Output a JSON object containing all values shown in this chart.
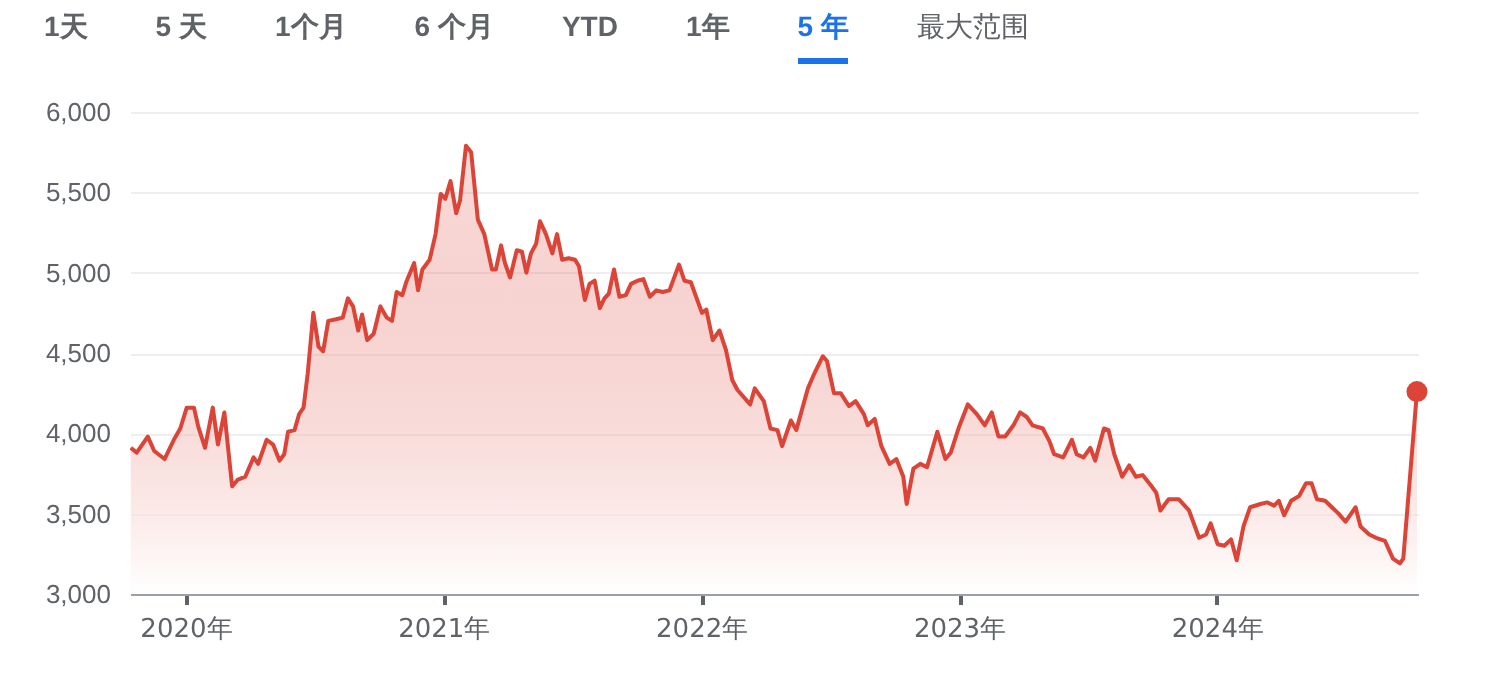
{
  "chart_data": {
    "type": "area",
    "annotations": [
      "1天",
      "5 天",
      "1个月",
      "6 个月",
      "YTD",
      "1年",
      "5 年",
      "最大范围"
    ],
    "xlim": [
      2019.785,
      2024.78
    ],
    "xticks": [
      {
        "value": 2020,
        "label": "2020年"
      },
      {
        "value": 2021,
        "label": "2021年"
      },
      {
        "value": 2022,
        "label": "2022年"
      },
      {
        "value": 2023,
        "label": "2023年"
      },
      {
        "value": 2024,
        "label": "2024年"
      }
    ],
    "ylim": [
      3000,
      6000
    ],
    "yticks": [
      {
        "value": 3000,
        "label": "3,000"
      },
      {
        "value": 3500,
        "label": "3,500"
      },
      {
        "value": 4000,
        "label": "4,000"
      },
      {
        "value": 4500,
        "label": "4,500"
      },
      {
        "value": 5000,
        "label": "5,000"
      },
      {
        "value": 5500,
        "label": "5,500"
      },
      {
        "value": 6000,
        "label": "6,000"
      }
    ],
    "grid": "y",
    "series": [
      {
        "color": "#db4437",
        "x": [
          2019.788,
          2019.811,
          2019.854,
          2019.879,
          2019.919,
          2019.955,
          2019.98,
          2020.005,
          2020.033,
          2020.05,
          2020.076,
          2020.106,
          2020.126,
          2020.151,
          2020.181,
          2020.202,
          2020.232,
          2020.264,
          2020.282,
          2020.315,
          2020.34,
          2020.365,
          2020.383,
          2020.398,
          2020.423,
          2020.441,
          2020.458,
          2020.474,
          2020.496,
          2020.516,
          2020.534,
          2020.554,
          2020.584,
          2020.61,
          2020.63,
          2020.65,
          2020.67,
          2020.685,
          2020.705,
          2020.73,
          2020.756,
          2020.781,
          2020.801,
          2020.819,
          2020.841,
          2020.856,
          2020.887,
          2020.902,
          2020.919,
          2020.947,
          2020.97,
          2020.99,
          2021.008,
          2021.028,
          2021.05,
          2021.065,
          2021.088,
          2021.108,
          2021.134,
          2021.159,
          2021.189,
          2021.204,
          2021.224,
          2021.239,
          2021.259,
          2021.285,
          2021.305,
          2021.322,
          2021.34,
          2021.36,
          2021.375,
          2021.398,
          2021.423,
          2021.441,
          2021.461,
          2021.486,
          2021.511,
          2021.526,
          2021.549,
          2021.567,
          2021.587,
          2021.607,
          2021.625,
          2021.642,
          2021.662,
          2021.683,
          2021.708,
          2021.728,
          2021.753,
          2021.776,
          2021.801,
          2021.826,
          2021.851,
          2021.877,
          2021.914,
          2021.935,
          2021.96,
          2021.985,
          2022.003,
          2022.02,
          2022.045,
          2022.071,
          2022.096,
          2022.121,
          2022.141,
          2022.19,
          2022.208,
          2022.243,
          2022.269,
          2022.296,
          2022.314,
          2022.348,
          2022.369,
          2022.414,
          2022.441,
          2022.472,
          2022.488,
          2022.515,
          2022.541,
          2022.573,
          2022.599,
          2022.631,
          2022.646,
          2022.673,
          2022.699,
          2022.731,
          2022.757,
          2022.784,
          2022.797,
          2022.823,
          2022.85,
          2022.876,
          2022.916,
          2022.947,
          2022.968,
          2023.0,
          2023.034,
          2023.069,
          2023.1,
          2023.127,
          2023.153,
          2023.179,
          2023.211,
          2023.237,
          2023.264,
          2023.285,
          2023.325,
          2023.351,
          2023.369,
          2023.404,
          2023.438,
          2023.456,
          2023.483,
          2023.509,
          2023.528,
          2023.562,
          2023.58,
          2023.602,
          2023.633,
          2023.66,
          2023.686,
          2023.712,
          2023.747,
          2023.765,
          2023.781,
          2023.813,
          2023.852,
          2023.892,
          2023.931,
          2023.958,
          2023.976,
          2024.003,
          2024.029,
          2024.055,
          2024.077,
          2024.103,
          2024.129,
          2024.169,
          2024.195,
          2024.222,
          2024.24,
          2024.261,
          2024.288,
          2024.319,
          2024.346,
          2024.367,
          2024.388,
          2024.42,
          2024.446,
          2024.472,
          2024.499,
          2024.538,
          2024.557,
          2024.591,
          2024.617,
          2024.652,
          2024.683,
          2024.71,
          2024.723,
          2024.776
        ],
        "values": [
          3910,
          3880,
          3980,
          3890,
          3840,
          3960,
          4030,
          4160,
          4160,
          4040,
          3910,
          4160,
          3930,
          4130,
          3670,
          3710,
          3730,
          3850,
          3810,
          3960,
          3930,
          3830,
          3870,
          4010,
          4020,
          4120,
          4160,
          4370,
          4750,
          4540,
          4510,
          4700,
          4710,
          4720,
          4840,
          4790,
          4640,
          4740,
          4580,
          4620,
          4790,
          4720,
          4700,
          4880,
          4860,
          4940,
          5060,
          4890,
          5020,
          5080,
          5240,
          5490,
          5460,
          5570,
          5370,
          5450,
          5790,
          5750,
          5330,
          5240,
          5020,
          5020,
          5170,
          5060,
          4970,
          5140,
          5130,
          5000,
          5120,
          5180,
          5320,
          5240,
          5120,
          5240,
          5080,
          5090,
          5080,
          5040,
          4830,
          4930,
          4950,
          4780,
          4840,
          4870,
          5020,
          4850,
          4860,
          4930,
          4950,
          4960,
          4850,
          4890,
          4880,
          4890,
          5050,
          4950,
          4940,
          4830,
          4750,
          4770,
          4580,
          4640,
          4520,
          4330,
          4270,
          4180,
          4280,
          4200,
          4030,
          4020,
          3920,
          4080,
          4020,
          4280,
          4380,
          4480,
          4450,
          4250,
          4250,
          4170,
          4200,
          4120,
          4050,
          4090,
          3920,
          3810,
          3840,
          3730,
          3560,
          3780,
          3810,
          3790,
          4010,
          3840,
          3880,
          4040,
          4180,
          4120,
          4050,
          4130,
          3980,
          3980,
          4050,
          4130,
          4100,
          4050,
          4030,
          3950,
          3870,
          3850,
          3960,
          3870,
          3850,
          3910,
          3830,
          4030,
          4020,
          3870,
          3730,
          3800,
          3730,
          3740,
          3670,
          3630,
          3520,
          3590,
          3590,
          3520,
          3350,
          3370,
          3440,
          3310,
          3300,
          3340,
          3210,
          3420,
          3540,
          3560,
          3570,
          3550,
          3580,
          3490,
          3580,
          3610,
          3690,
          3690,
          3590,
          3580,
          3540,
          3500,
          3450,
          3540,
          3420,
          3370,
          3350,
          3330,
          3220,
          3190,
          3220,
          4260
        ]
      },
      {
        "type": "scatter",
        "color": "#db4437",
        "marker": "circle",
        "x": [
          2024.776
        ],
        "values": [
          4260
        ]
      }
    ]
  }
}
